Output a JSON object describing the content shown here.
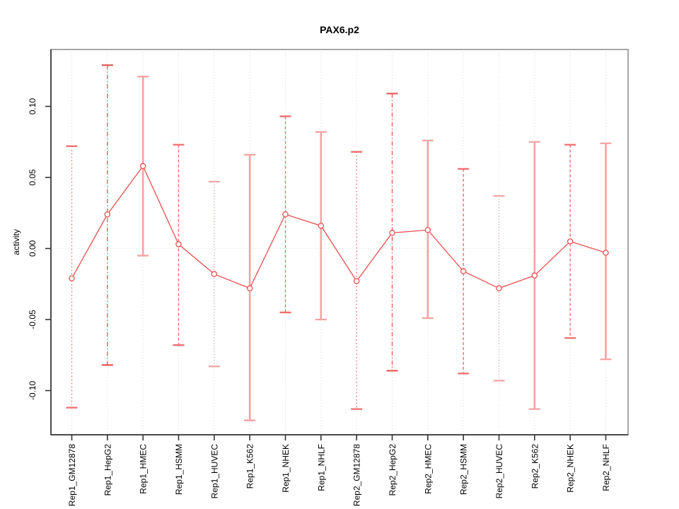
{
  "figure": {
    "title": "PAX6.p2",
    "y_axis_label": "activity"
  },
  "chart_data": {
    "type": "line",
    "subtype": "points-with-error-bars",
    "title": "PAX6.p2",
    "xlabel": "",
    "ylabel": "activity",
    "ylim": [
      -0.128,
      0.14
    ],
    "ytick_values": [
      0.1,
      0.05,
      0.0,
      -0.05,
      -0.1
    ],
    "ytick_labels": [
      "0.10",
      "0.05",
      "0.00",
      "-0.05",
      "-0.10"
    ],
    "grid": "vertical dotted gridline at each category; dotted horizontal line at zero",
    "legend_position": "none",
    "marker": "open-circle",
    "categories": [
      "Rep1_GM12878",
      "Rep1_HepG2",
      "Rep1_HMEC",
      "Rep1_HSMM",
      "Rep1_HUVEC",
      "Rep1_K562",
      "Rep1_NHEK",
      "Rep1_NHLF",
      "Rep2_GM12878",
      "Rep2_HepG2",
      "Rep2_HMEC",
      "Rep2_HSMM",
      "Rep2_HUVEC",
      "Rep2_K562",
      "Rep2_NHEK",
      "Rep2_NHLF"
    ],
    "series": [
      {
        "name": "activity",
        "values": [
          -0.021,
          0.024,
          0.058,
          0.003,
          -0.018,
          -0.028,
          0.024,
          0.016,
          -0.023,
          0.011,
          0.013,
          -0.016,
          -0.028,
          -0.019,
          0.005,
          -0.003
        ],
        "error_low": [
          -0.112,
          -0.082,
          -0.005,
          -0.068,
          -0.083,
          -0.121,
          -0.045,
          -0.05,
          -0.113,
          -0.086,
          -0.049,
          -0.088,
          -0.093,
          -0.113,
          -0.063,
          -0.078
        ],
        "error_high": [
          0.072,
          0.129,
          0.121,
          0.073,
          0.047,
          0.066,
          0.093,
          0.082,
          0.068,
          0.109,
          0.076,
          0.056,
          0.037,
          0.075,
          0.073,
          0.074
        ]
      }
    ],
    "error_bar_line_styles": [
      "dotted",
      "dashdot",
      "solid",
      "dashed",
      "fine-dotted",
      "solid",
      "dashed",
      "solid",
      "dotted",
      "dashdot",
      "solid",
      "dashed",
      "fine-dotted",
      "solid",
      "dashed",
      "solid"
    ]
  },
  "colors": {
    "series_red": "#e85050",
    "errorbar_solid_pink": "#f5a2a2",
    "errorbar_pattern_red": "#ee6e6e",
    "errorbar_dashdot_red": "#e85c5c",
    "errorbar_fine_dotted_pink": "#f3a6a6",
    "frame_gray": "#a6a6a6",
    "axis_dark": "#4a4a4a",
    "grid_gray": "#d9d9d9",
    "background": "#ffffff",
    "text": "#000000"
  }
}
